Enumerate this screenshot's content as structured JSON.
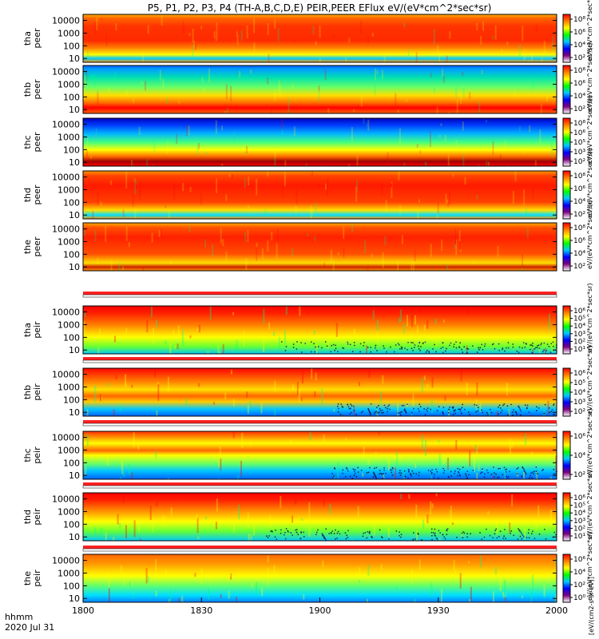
{
  "chart_data": {
    "type": "heatmap",
    "title": "P5, P1, P2, P3, P4 (TH-A,B,C,D,E) PEIR,PEER EFlux eV/(eV*cm^2*sec*sr)",
    "x": {
      "label": "hhmm",
      "date": "2020 Jul 31",
      "range": [
        1800,
        2000
      ],
      "tick_labels": [
        "1800",
        "1830",
        "1900",
        "1930",
        "2000"
      ]
    },
    "y_scale": "log",
    "y_tick_labels": [
      "10",
      "100",
      "1000",
      "10000"
    ],
    "colorbar_unit_label": "eV/(eV*cm^2*sec*sr)",
    "panels": [
      {
        "label_line1": "tha",
        "label_line2": "peer",
        "species": "electron",
        "cb_ticks": [
          "10^8",
          "10^6",
          "10^4",
          "10^2"
        ]
      },
      {
        "label_line1": "thb",
        "label_line2": "peer",
        "species": "electron",
        "cb_ticks": [
          "10^8",
          "10^6",
          "10^4",
          "10^2"
        ]
      },
      {
        "label_line1": "thc",
        "label_line2": "peer",
        "species": "electron",
        "cb_ticks": [
          "10^8",
          "10^6",
          "10^5",
          "10^3",
          "10^2"
        ]
      },
      {
        "label_line1": "thd",
        "label_line2": "peer",
        "species": "electron",
        "cb_ticks": [
          "10^8",
          "10^6",
          "10^4",
          "10^2"
        ]
      },
      {
        "label_line1": "the",
        "label_line2": "peer",
        "species": "electron",
        "cb_ticks": [
          "10^8",
          "10^6",
          "10^4",
          "10^2"
        ]
      },
      {
        "label_line1": "tha",
        "label_line2": "peir",
        "species": "ion",
        "cb_ticks": [
          "10^6",
          "10^5",
          "10^4",
          "10^3",
          "10^2",
          "10^1"
        ]
      },
      {
        "label_line1": "thb",
        "label_line2": "peir",
        "species": "ion",
        "cb_ticks": [
          "10^6",
          "10^5",
          "10^4",
          "10^3",
          "10^2"
        ]
      },
      {
        "label_line1": "thc",
        "label_line2": "peir",
        "species": "ion",
        "cb_ticks": [
          "10^6",
          "10^4",
          "10^2"
        ]
      },
      {
        "label_line1": "thd",
        "label_line2": "peir",
        "species": "ion",
        "cb_ticks": [
          "10^6",
          "10^5",
          "10^4",
          "10^3",
          "10^2",
          "10^1"
        ]
      },
      {
        "label_line1": "the",
        "label_line2": "peir",
        "species": "ion",
        "cb_ticks": [
          "10^6",
          "10^4",
          "10^2",
          "10^0"
        ]
      }
    ],
    "bottom_colorbar_label": "[eV/(cm2-s-sr-eV)]",
    "colormap": [
      "#ffffff",
      "#7f007f",
      "#0000ff",
      "#00c8ff",
      "#00ff00",
      "#ffff00",
      "#ff8000",
      "#ff0000"
    ]
  }
}
